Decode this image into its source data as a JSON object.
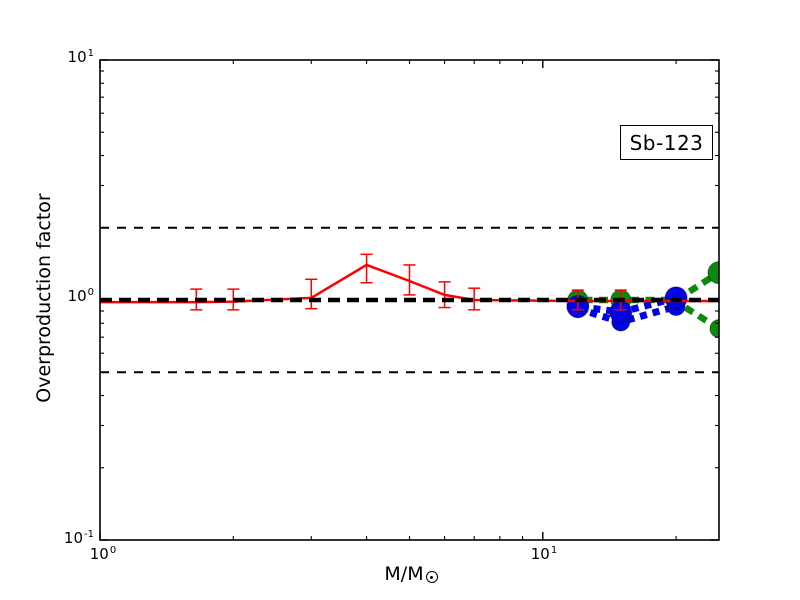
{
  "figure": {
    "background": "#ffffff",
    "title_box": "Sb-123",
    "y_axis": {
      "label": "Overproduction factor",
      "ticks": [
        {
          "base": "10",
          "exp": "1"
        },
        {
          "base": "10",
          "exp": "0"
        },
        {
          "base": "10",
          "exp": "-1"
        }
      ]
    },
    "x_axis": {
      "label_base": "M/M",
      "label_subscript": "☉",
      "ticks": [
        {
          "base": "10",
          "exp": "0"
        },
        {
          "base": "10",
          "exp": "1"
        }
      ]
    }
  },
  "chart_data": {
    "type": "line",
    "title": "",
    "annotation": "Sb-123",
    "xlabel": "M/M☉",
    "ylabel": "Overproduction factor",
    "xscale": "log",
    "yscale": "log",
    "xlim": [
      1,
      25
    ],
    "ylim": [
      0.1,
      10
    ],
    "grid": false,
    "background": "#ffffff",
    "reference_lines": [
      {
        "y": 1.0,
        "color": "#000000",
        "lw": 4.6,
        "dash": [
          12,
          7
        ],
        "name": "unity-line-thick-dashed"
      },
      {
        "y": 2.0,
        "color": "#000000",
        "lw": 2.0,
        "dash": [
          9,
          8
        ],
        "name": "factor-2-upper-dashed"
      },
      {
        "y": 0.5,
        "color": "#000000",
        "lw": 2.0,
        "dash": [
          9,
          8
        ],
        "name": "factor-2-lower-dashed"
      }
    ],
    "series": [
      {
        "name": "green-massive-flat-upper-branch",
        "color": "#0b8a0b",
        "lw": 6.5,
        "dash": [
          9,
          6.5
        ],
        "x": [
          11.4,
          12,
          15,
          20,
          25
        ],
        "y": [
          1.0,
          1.0,
          1.0,
          1.0,
          1.3
        ],
        "markers": [
          {
            "x": 12,
            "y": 1.0,
            "r": 10
          },
          {
            "x": 15,
            "y": 1.0,
            "r": 10
          },
          {
            "x": 20,
            "y": 1.0,
            "r": 10
          },
          {
            "x": 25,
            "y": 1.3,
            "r": 11
          }
        ]
      },
      {
        "name": "blue-massive-lower",
        "color": "#0202e6",
        "lw": 7,
        "dash": [
          7,
          6
        ],
        "x": [
          12,
          15,
          20
        ],
        "y": [
          0.92,
          0.81,
          0.94
        ],
        "markers": [
          {
            "x": 12,
            "y": 0.92,
            "r": 9
          },
          {
            "x": 15,
            "y": 0.81,
            "r": 9
          },
          {
            "x": 20,
            "y": 0.94,
            "r": 9
          }
        ]
      },
      {
        "name": "blue-massive-upper",
        "color": "#0202e6",
        "lw": 7,
        "dash": [
          7,
          6
        ],
        "x": [
          11.4,
          12,
          15,
          20
        ],
        "y": [
          0.97,
          0.94,
          0.89,
          1.02
        ],
        "markers": [
          {
            "x": 12,
            "y": 0.94,
            "r": 11
          },
          {
            "x": 15,
            "y": 0.89,
            "r": 11
          },
          {
            "x": 20,
            "y": 1.02,
            "r": 11
          }
        ]
      },
      {
        "name": "green-massive-lower-branch",
        "color": "#0b8a0b",
        "lw": 6.5,
        "dash": [
          9,
          6.5
        ],
        "x": [
          21,
          25
        ],
        "y": [
          0.93,
          0.76
        ],
        "markers": [
          {
            "x": 25,
            "y": 0.76,
            "r": 9
          }
        ]
      },
      {
        "name": "red-agb-errorbar-line",
        "color": "#ff0000",
        "lw": 2.5,
        "dash": null,
        "x": [
          1,
          1.65,
          2,
          3,
          4,
          5,
          6,
          7,
          12,
          15,
          25
        ],
        "y": [
          0.98,
          0.98,
          0.985,
          1.02,
          1.4,
          1.2,
          1.05,
          1.0,
          0.99,
          0.99,
          0.99
        ],
        "errorbars": [
          {
            "x": 1.65,
            "y": 0.98,
            "lo": 0.91,
            "hi": 1.11
          },
          {
            "x": 2,
            "y": 0.985,
            "lo": 0.91,
            "hi": 1.11
          },
          {
            "x": 3,
            "y": 1.02,
            "lo": 0.92,
            "hi": 1.22
          },
          {
            "x": 4,
            "y": 1.4,
            "lo": 1.18,
            "hi": 1.55
          },
          {
            "x": 5,
            "y": 1.2,
            "lo": 1.05,
            "hi": 1.4
          },
          {
            "x": 6,
            "y": 1.05,
            "lo": 0.93,
            "hi": 1.19
          },
          {
            "x": 7,
            "y": 1.0,
            "lo": 0.91,
            "hi": 1.12
          },
          {
            "x": 12,
            "y": 0.99,
            "lo": 0.91,
            "hi": 1.1
          },
          {
            "x": 15,
            "y": 0.99,
            "lo": 0.91,
            "hi": 1.1
          }
        ]
      }
    ]
  }
}
